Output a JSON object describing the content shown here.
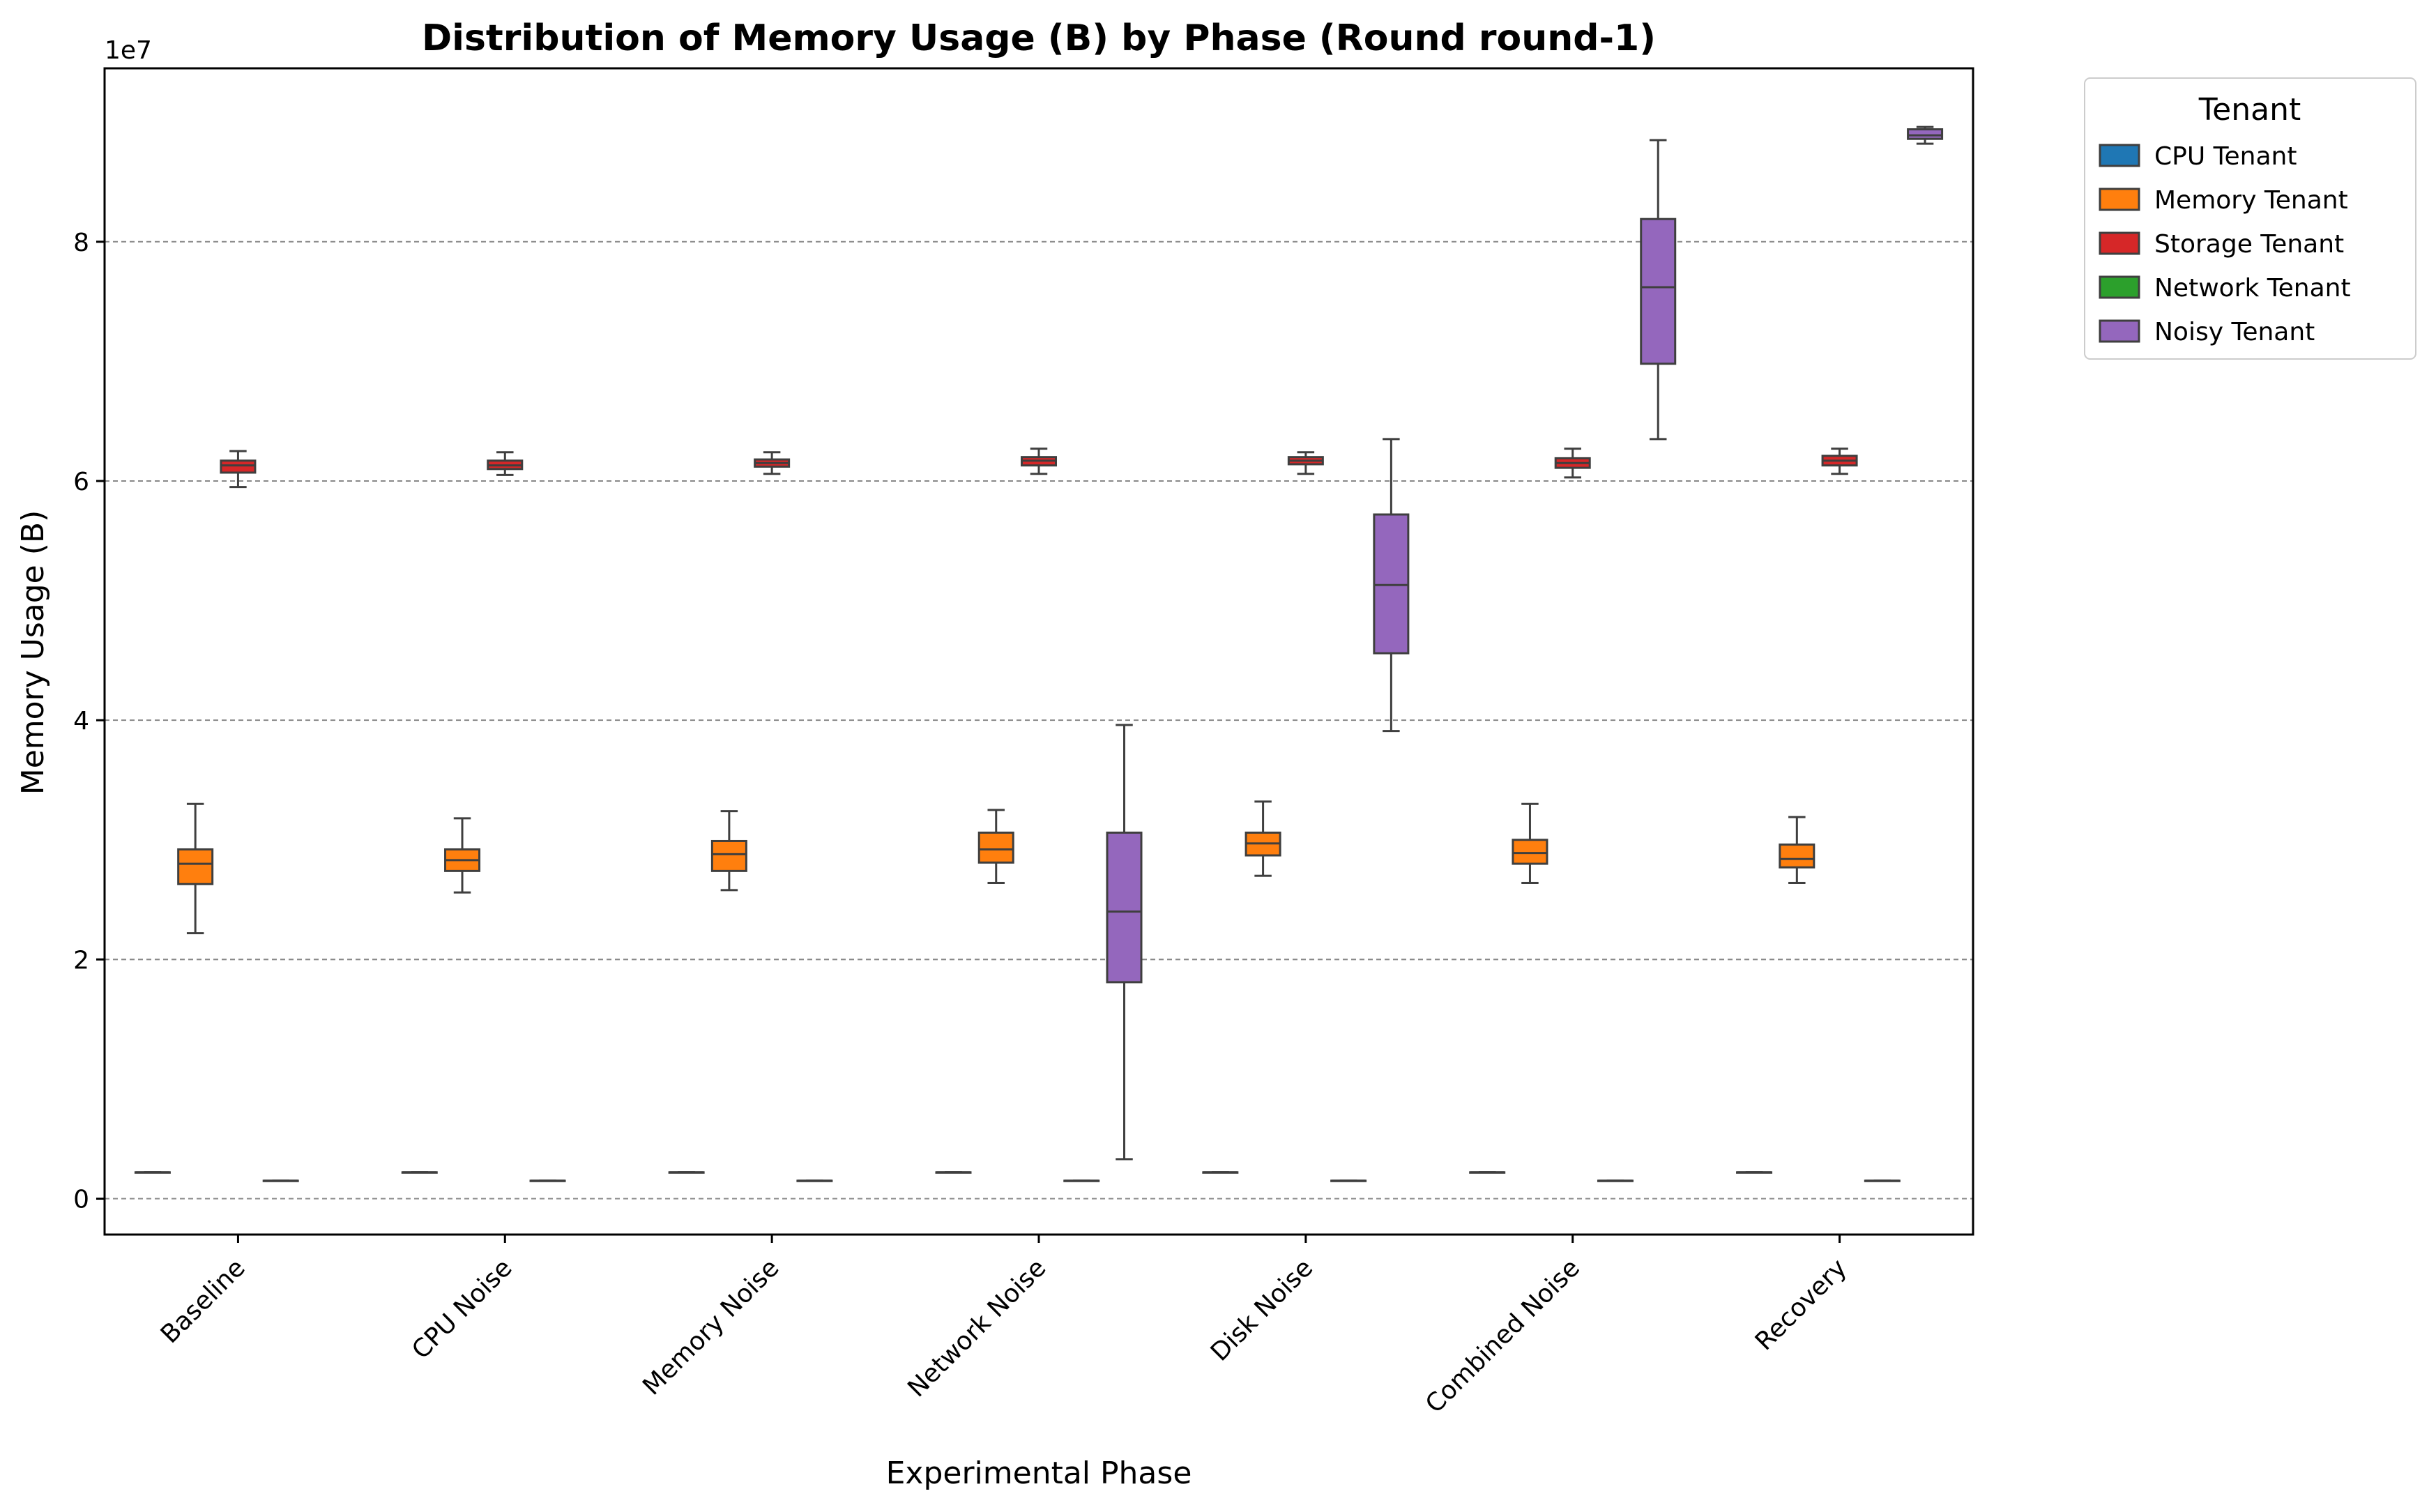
{
  "chart_data": {
    "type": "box",
    "title": "Distribution of Memory Usage (B) by Phase (Round round-1)",
    "xlabel": "Experimental Phase",
    "ylabel": "Memory Usage (B)",
    "y_offset_label": "1e7",
    "y_tick_values": [
      0,
      2,
      4,
      6,
      8
    ],
    "y_tick_labels": [
      "0",
      "2",
      "4",
      "6",
      "8"
    ],
    "ylim": [
      -0.3,
      9.45
    ],
    "y_unit_multiplier": 10000000,
    "grid": "horizontal dashed",
    "legend_position": "outside upper right",
    "legend_title": "Tenant",
    "categories": [
      "Baseline",
      "CPU Noise",
      "Memory Noise",
      "Network Noise",
      "Disk Noise",
      "Combined Noise",
      "Recovery"
    ],
    "series": [
      {
        "name": "CPU Tenant",
        "color": "#1f77b4",
        "boxes": [
          {
            "min": 0.22,
            "q1": 0.22,
            "median": 0.22,
            "q3": 0.22,
            "max": 0.22
          },
          {
            "min": 0.22,
            "q1": 0.22,
            "median": 0.22,
            "q3": 0.22,
            "max": 0.22
          },
          {
            "min": 0.22,
            "q1": 0.22,
            "median": 0.22,
            "q3": 0.22,
            "max": 0.22
          },
          {
            "min": 0.22,
            "q1": 0.22,
            "median": 0.22,
            "q3": 0.22,
            "max": 0.22
          },
          {
            "min": 0.22,
            "q1": 0.22,
            "median": 0.22,
            "q3": 0.22,
            "max": 0.22
          },
          {
            "min": 0.22,
            "q1": 0.22,
            "median": 0.22,
            "q3": 0.22,
            "max": 0.22
          },
          {
            "min": 0.22,
            "q1": 0.22,
            "median": 0.22,
            "q3": 0.22,
            "max": 0.22
          }
        ]
      },
      {
        "name": "Memory Tenant",
        "color": "#ff7f0e",
        "boxes": [
          {
            "min": 2.22,
            "q1": 2.63,
            "median": 2.8,
            "q3": 2.92,
            "max": 3.3
          },
          {
            "min": 2.56,
            "q1": 2.74,
            "median": 2.83,
            "q3": 2.92,
            "max": 3.18
          },
          {
            "min": 2.58,
            "q1": 2.74,
            "median": 2.88,
            "q3": 2.99,
            "max": 3.24
          },
          {
            "min": 2.64,
            "q1": 2.81,
            "median": 2.92,
            "q3": 3.06,
            "max": 3.25
          },
          {
            "min": 2.7,
            "q1": 2.87,
            "median": 2.97,
            "q3": 3.06,
            "max": 3.32
          },
          {
            "min": 2.64,
            "q1": 2.8,
            "median": 2.89,
            "q3": 3.0,
            "max": 3.3
          },
          {
            "min": 2.64,
            "q1": 2.77,
            "median": 2.84,
            "q3": 2.96,
            "max": 3.19
          }
        ]
      },
      {
        "name": "Storage Tenant",
        "color": "#d62728",
        "boxes": [
          {
            "min": 5.95,
            "q1": 6.07,
            "median": 6.13,
            "q3": 6.17,
            "max": 6.25
          },
          {
            "min": 6.05,
            "q1": 6.1,
            "median": 6.13,
            "q3": 6.17,
            "max": 6.24
          },
          {
            "min": 6.06,
            "q1": 6.12,
            "median": 6.15,
            "q3": 6.18,
            "max": 6.24
          },
          {
            "min": 6.06,
            "q1": 6.13,
            "median": 6.17,
            "q3": 6.2,
            "max": 6.27
          },
          {
            "min": 6.06,
            "q1": 6.14,
            "median": 6.17,
            "q3": 6.2,
            "max": 6.24
          },
          {
            "min": 6.03,
            "q1": 6.11,
            "median": 6.15,
            "q3": 6.19,
            "max": 6.27
          },
          {
            "min": 6.06,
            "q1": 6.13,
            "median": 6.17,
            "q3": 6.21,
            "max": 6.27
          }
        ]
      },
      {
        "name": "Network Tenant",
        "color": "#2ca02c",
        "boxes": [
          {
            "min": 0.15,
            "q1": 0.15,
            "median": 0.15,
            "q3": 0.15,
            "max": 0.15
          },
          {
            "min": 0.15,
            "q1": 0.15,
            "median": 0.15,
            "q3": 0.15,
            "max": 0.15
          },
          {
            "min": 0.15,
            "q1": 0.15,
            "median": 0.15,
            "q3": 0.15,
            "max": 0.15
          },
          {
            "min": 0.15,
            "q1": 0.15,
            "median": 0.15,
            "q3": 0.15,
            "max": 0.15
          },
          {
            "min": 0.15,
            "q1": 0.15,
            "median": 0.15,
            "q3": 0.15,
            "max": 0.15
          },
          {
            "min": 0.15,
            "q1": 0.15,
            "median": 0.15,
            "q3": 0.15,
            "max": 0.15
          },
          {
            "min": 0.15,
            "q1": 0.15,
            "median": 0.15,
            "q3": 0.15,
            "max": 0.15
          }
        ]
      },
      {
        "name": "Noisy Tenant",
        "color": "#9467bd",
        "boxes": [
          null,
          null,
          null,
          {
            "min": 0.33,
            "q1": 1.81,
            "median": 2.4,
            "q3": 3.06,
            "max": 3.96
          },
          {
            "min": 3.91,
            "q1": 4.56,
            "median": 5.13,
            "q3": 5.72,
            "max": 6.35
          },
          {
            "min": 6.35,
            "q1": 6.98,
            "median": 7.62,
            "q3": 8.19,
            "max": 8.85
          },
          {
            "min": 8.82,
            "q1": 8.86,
            "median": 8.89,
            "q3": 8.94,
            "max": 8.96
          }
        ]
      }
    ]
  }
}
